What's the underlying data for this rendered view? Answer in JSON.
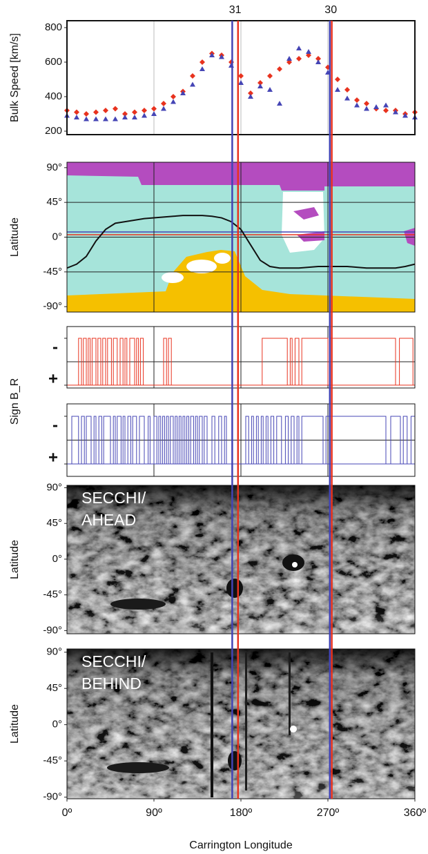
{
  "x_axis": {
    "label": "Carrington Longitude",
    "xlim": [
      0,
      360
    ],
    "xticks": [
      {
        "value": 0,
        "label": "0º"
      },
      {
        "value": 90,
        "label": "90º"
      },
      {
        "value": 180,
        "label": "180º"
      },
      {
        "value": 270,
        "label": "270º"
      },
      {
        "value": 360,
        "label": "360º"
      }
    ]
  },
  "markers": [
    {
      "label": "31",
      "lines": [
        {
          "color": "#4343b5",
          "x": 171
        },
        {
          "color": "#e8321e",
          "x": 177
        }
      ]
    },
    {
      "label": "30",
      "lines": [
        {
          "color": "#4343b5",
          "x": 272
        },
        {
          "color": "#e8321e",
          "x": 274
        }
      ]
    }
  ],
  "chart_data": [
    {
      "type": "scatter",
      "ylabel": "Bulk Speed [km/s]",
      "ylim": [
        180,
        840
      ],
      "yticks": [
        200,
        400,
        600,
        800
      ],
      "x": [
        0,
        10,
        20,
        30,
        40,
        50,
        60,
        70,
        80,
        90,
        100,
        110,
        120,
        130,
        140,
        150,
        160,
        170,
        180,
        190,
        200,
        210,
        220,
        230,
        240,
        250,
        260,
        270,
        280,
        290,
        300,
        310,
        320,
        330,
        340,
        350,
        360
      ],
      "series": [
        {
          "color": "#e8321e",
          "marker": "diamond",
          "values": [
            320,
            310,
            300,
            310,
            320,
            330,
            300,
            310,
            320,
            330,
            360,
            400,
            430,
            520,
            600,
            650,
            640,
            600,
            520,
            420,
            480,
            520,
            560,
            600,
            620,
            640,
            620,
            570,
            500,
            440,
            380,
            360,
            330,
            320,
            320,
            300,
            310
          ]
        },
        {
          "color": "#4545b5",
          "marker": "triangle",
          "values": [
            290,
            280,
            270,
            270,
            270,
            270,
            280,
            280,
            290,
            300,
            330,
            370,
            420,
            470,
            560,
            640,
            630,
            580,
            480,
            400,
            460,
            440,
            360,
            620,
            680,
            660,
            600,
            540,
            440,
            390,
            350,
            330,
            340,
            350,
            310,
            290,
            280
          ]
        }
      ]
    },
    {
      "type": "map",
      "ylabel": "Latitude",
      "ylim": [
        -97,
        97
      ],
      "yticks": [
        {
          "value": 90,
          "label": "90°"
        },
        {
          "value": 45,
          "label": "45°"
        },
        {
          "value": 0,
          "label": "0°"
        },
        {
          "value": -45,
          "label": "-45°"
        },
        {
          "value": -90,
          "label": "-90°"
        }
      ],
      "grid": true,
      "neutral_line": {
        "color": "#111111",
        "x": [
          0,
          10,
          20,
          30,
          40,
          50,
          60,
          70,
          80,
          90,
          100,
          110,
          120,
          130,
          140,
          150,
          160,
          170,
          180,
          190,
          200,
          210,
          220,
          230,
          240,
          250,
          260,
          270,
          280,
          290,
          300,
          310,
          320,
          330,
          340,
          350,
          360
        ],
        "values": [
          -40,
          -35,
          -25,
          -5,
          10,
          18,
          20,
          22,
          24,
          25,
          26,
          27,
          28,
          28,
          28,
          27,
          25,
          20,
          10,
          -10,
          -30,
          -38,
          -40,
          -40,
          -40,
          -39,
          -38,
          -38,
          -38,
          -38,
          -39,
          -40,
          -40,
          -40,
          -40,
          -38,
          -35
        ]
      }
    },
    {
      "type": "step",
      "ylabel": "Sign B_R",
      "color": "#e8321e",
      "ylim": [
        1.12,
        -1.5
      ],
      "yticks": [
        {
          "value": -1,
          "label": "-"
        },
        {
          "value": 1,
          "label": "+"
        }
      ],
      "negative_intervals": [
        [
          12,
          15
        ],
        [
          17,
          20
        ],
        [
          22,
          24
        ],
        [
          26,
          30
        ],
        [
          32,
          35
        ],
        [
          37,
          40
        ],
        [
          42,
          46
        ],
        [
          48,
          52
        ],
        [
          55,
          58
        ],
        [
          60,
          62
        ],
        [
          65,
          70
        ],
        [
          72,
          74
        ],
        [
          76,
          79
        ],
        [
          100,
          103
        ],
        [
          105,
          108
        ],
        [
          202,
          228
        ],
        [
          231,
          233
        ],
        [
          236,
          240
        ],
        [
          243,
          270
        ],
        [
          272,
          340
        ],
        [
          344,
          358
        ]
      ]
    },
    {
      "type": "step",
      "color": "#4545b5",
      "ylim": [
        1.52,
        -1.52
      ],
      "yticks": [
        {
          "value": -1,
          "label": "-"
        },
        {
          "value": 1,
          "label": "+"
        }
      ],
      "negative_intervals": [
        [
          5,
          12
        ],
        [
          15,
          18
        ],
        [
          20,
          25
        ],
        [
          28,
          30
        ],
        [
          33,
          36
        ],
        [
          38,
          45
        ],
        [
          48,
          50
        ],
        [
          52,
          56
        ],
        [
          58,
          60
        ],
        [
          63,
          66
        ],
        [
          68,
          72
        ],
        [
          75,
          80
        ],
        [
          84,
          86
        ],
        [
          90,
          93
        ],
        [
          95,
          97
        ],
        [
          99,
          101
        ],
        [
          103,
          105
        ],
        [
          107,
          110
        ],
        [
          112,
          114
        ],
        [
          116,
          118
        ],
        [
          120,
          122
        ],
        [
          124,
          126
        ],
        [
          128,
          131
        ],
        [
          133,
          135
        ],
        [
          137,
          140
        ],
        [
          142,
          145
        ],
        [
          150,
          153
        ],
        [
          157,
          160
        ],
        [
          163,
          165
        ],
        [
          185,
          188
        ],
        [
          191,
          193
        ],
        [
          196,
          198
        ],
        [
          201,
          203
        ],
        [
          206,
          208
        ],
        [
          211,
          214
        ],
        [
          217,
          222
        ],
        [
          226,
          229
        ],
        [
          232,
          235
        ],
        [
          238,
          240
        ],
        [
          243,
          265
        ],
        [
          268,
          330
        ],
        [
          335,
          345
        ],
        [
          348,
          352
        ],
        [
          356,
          360
        ]
      ]
    },
    {
      "type": "image",
      "title": [
        "SECCHI/",
        "AHEAD"
      ],
      "ylabel": "Latitude",
      "ylim": [
        -94,
        93
      ],
      "yticks": [
        {
          "value": 90,
          "label": "90°"
        },
        {
          "value": 45,
          "label": "45°"
        },
        {
          "value": 0,
          "label": "0°"
        },
        {
          "value": -45,
          "label": "-45°"
        },
        {
          "value": -90,
          "label": "-90°"
        }
      ]
    },
    {
      "type": "image",
      "title": [
        "SECCHI/",
        "BEHIND"
      ],
      "ylabel": "Latitude",
      "ylim": [
        -92,
        94
      ],
      "yticks": [
        {
          "value": 90,
          "label": "90°"
        },
        {
          "value": 45,
          "label": "45°"
        },
        {
          "value": 0,
          "label": "0°"
        },
        {
          "value": -45,
          "label": "-45°"
        },
        {
          "value": -90,
          "label": "-90°"
        }
      ]
    }
  ]
}
